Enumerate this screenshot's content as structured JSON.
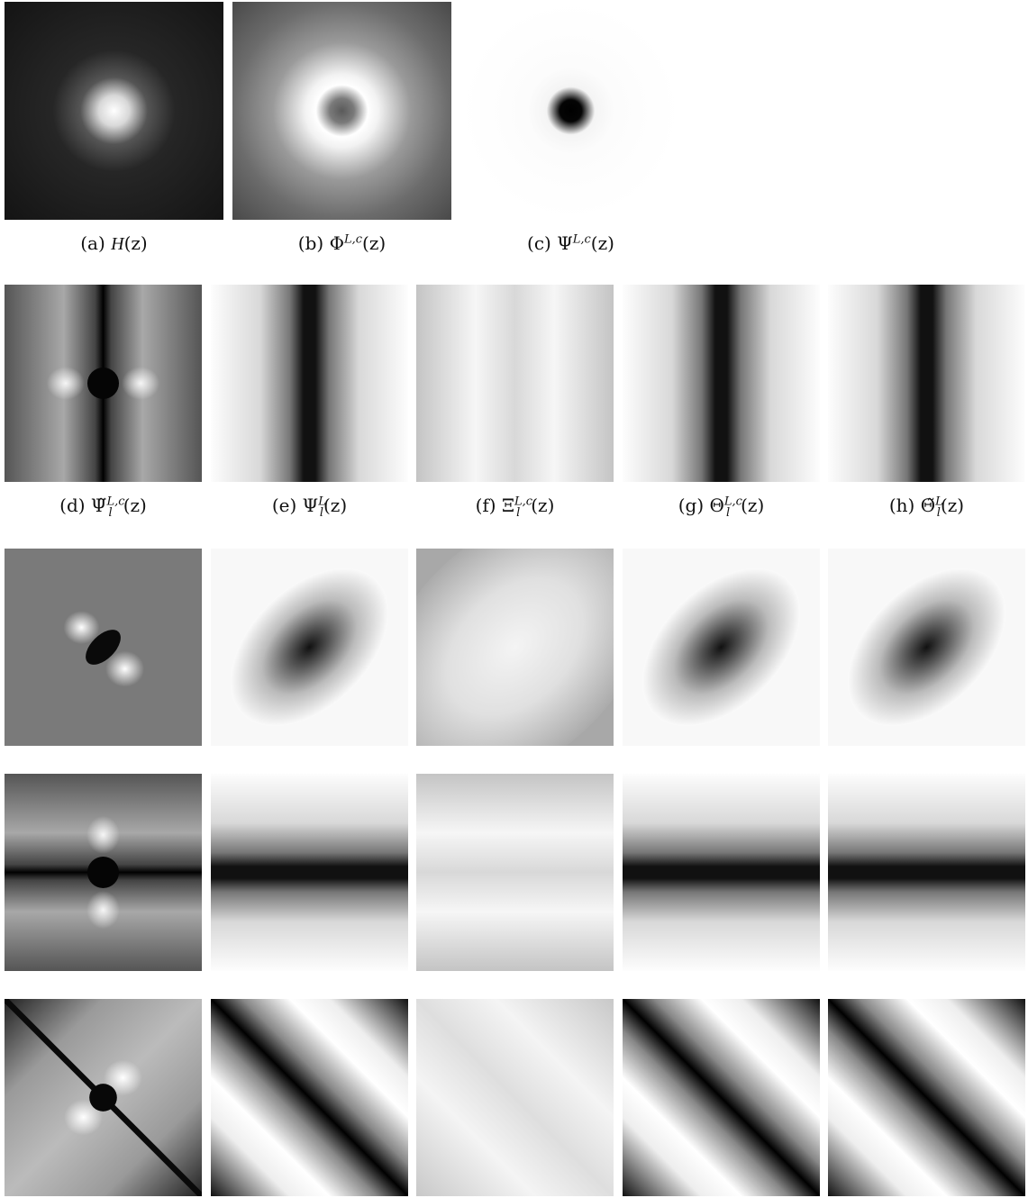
{
  "figure": {
    "row1": [
      {
        "id": "a",
        "label": "(a)",
        "symbol": "H",
        "sup": "",
        "sub": "",
        "tilde": false,
        "arg": "(z)"
      },
      {
        "id": "b",
        "label": "(b)",
        "symbol": "Φ",
        "sup": "L,c",
        "sub": "",
        "tilde": false,
        "arg": "(z)"
      },
      {
        "id": "c",
        "label": "(c)",
        "symbol": "Ψ",
        "sup": "L,c",
        "sub": "",
        "tilde": false,
        "arg": "(z)"
      }
    ],
    "row2": [
      {
        "id": "d",
        "label": "(d)",
        "symbol": "Ψ",
        "sup": "L,c",
        "sub": "l",
        "tilde": true,
        "arg": "(z)"
      },
      {
        "id": "e",
        "label": "(e)",
        "symbol": "Ψ",
        "sup": "L",
        "sub": "l",
        "tilde": false,
        "arg": "(z)"
      },
      {
        "id": "f",
        "label": "(f)",
        "symbol": "Ξ",
        "sup": "L,c",
        "sub": "l",
        "tilde": false,
        "arg": "(z)"
      },
      {
        "id": "g",
        "label": "(g)",
        "symbol": "Θ",
        "sup": "L,c",
        "sub": "l",
        "tilde": false,
        "arg": "(z)"
      },
      {
        "id": "h",
        "label": "(h)",
        "symbol": "Θ",
        "sup": "L",
        "sub": "l",
        "tilde": true,
        "arg": "(z)"
      }
    ]
  }
}
